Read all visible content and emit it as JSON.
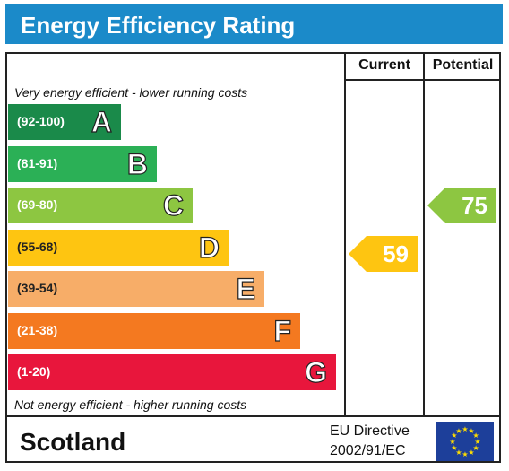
{
  "title": "Energy Efficiency Rating",
  "columns": {
    "current": "Current",
    "potential": "Potential"
  },
  "top_caption": "Very energy efficient - lower running costs",
  "bottom_caption": "Not energy efficient - higher running costs",
  "bands": [
    {
      "range": "(92-100)",
      "letter": "A",
      "color": "#1a8a4a"
    },
    {
      "range": "(81-91)",
      "letter": "B",
      "color": "#2bb056"
    },
    {
      "range": "(69-80)",
      "letter": "C",
      "color": "#8dc641"
    },
    {
      "range": "(55-68)",
      "letter": "D",
      "color": "#fec511"
    },
    {
      "range": "(39-54)",
      "letter": "E",
      "color": "#f7ad68"
    },
    {
      "range": "(21-38)",
      "letter": "F",
      "color": "#f47920"
    },
    {
      "range": "(1-20)",
      "letter": "G",
      "color": "#e8163c"
    }
  ],
  "current": {
    "value": "59",
    "band": "D",
    "color": "#fec511"
  },
  "potential": {
    "value": "75",
    "band": "C",
    "color": "#8dc641"
  },
  "footer": {
    "region": "Scotland",
    "directive_line1": "EU Directive",
    "directive_line2": "2002/91/EC",
    "flag_color": "#1d3f9a",
    "star_color": "#ffdd00"
  }
}
